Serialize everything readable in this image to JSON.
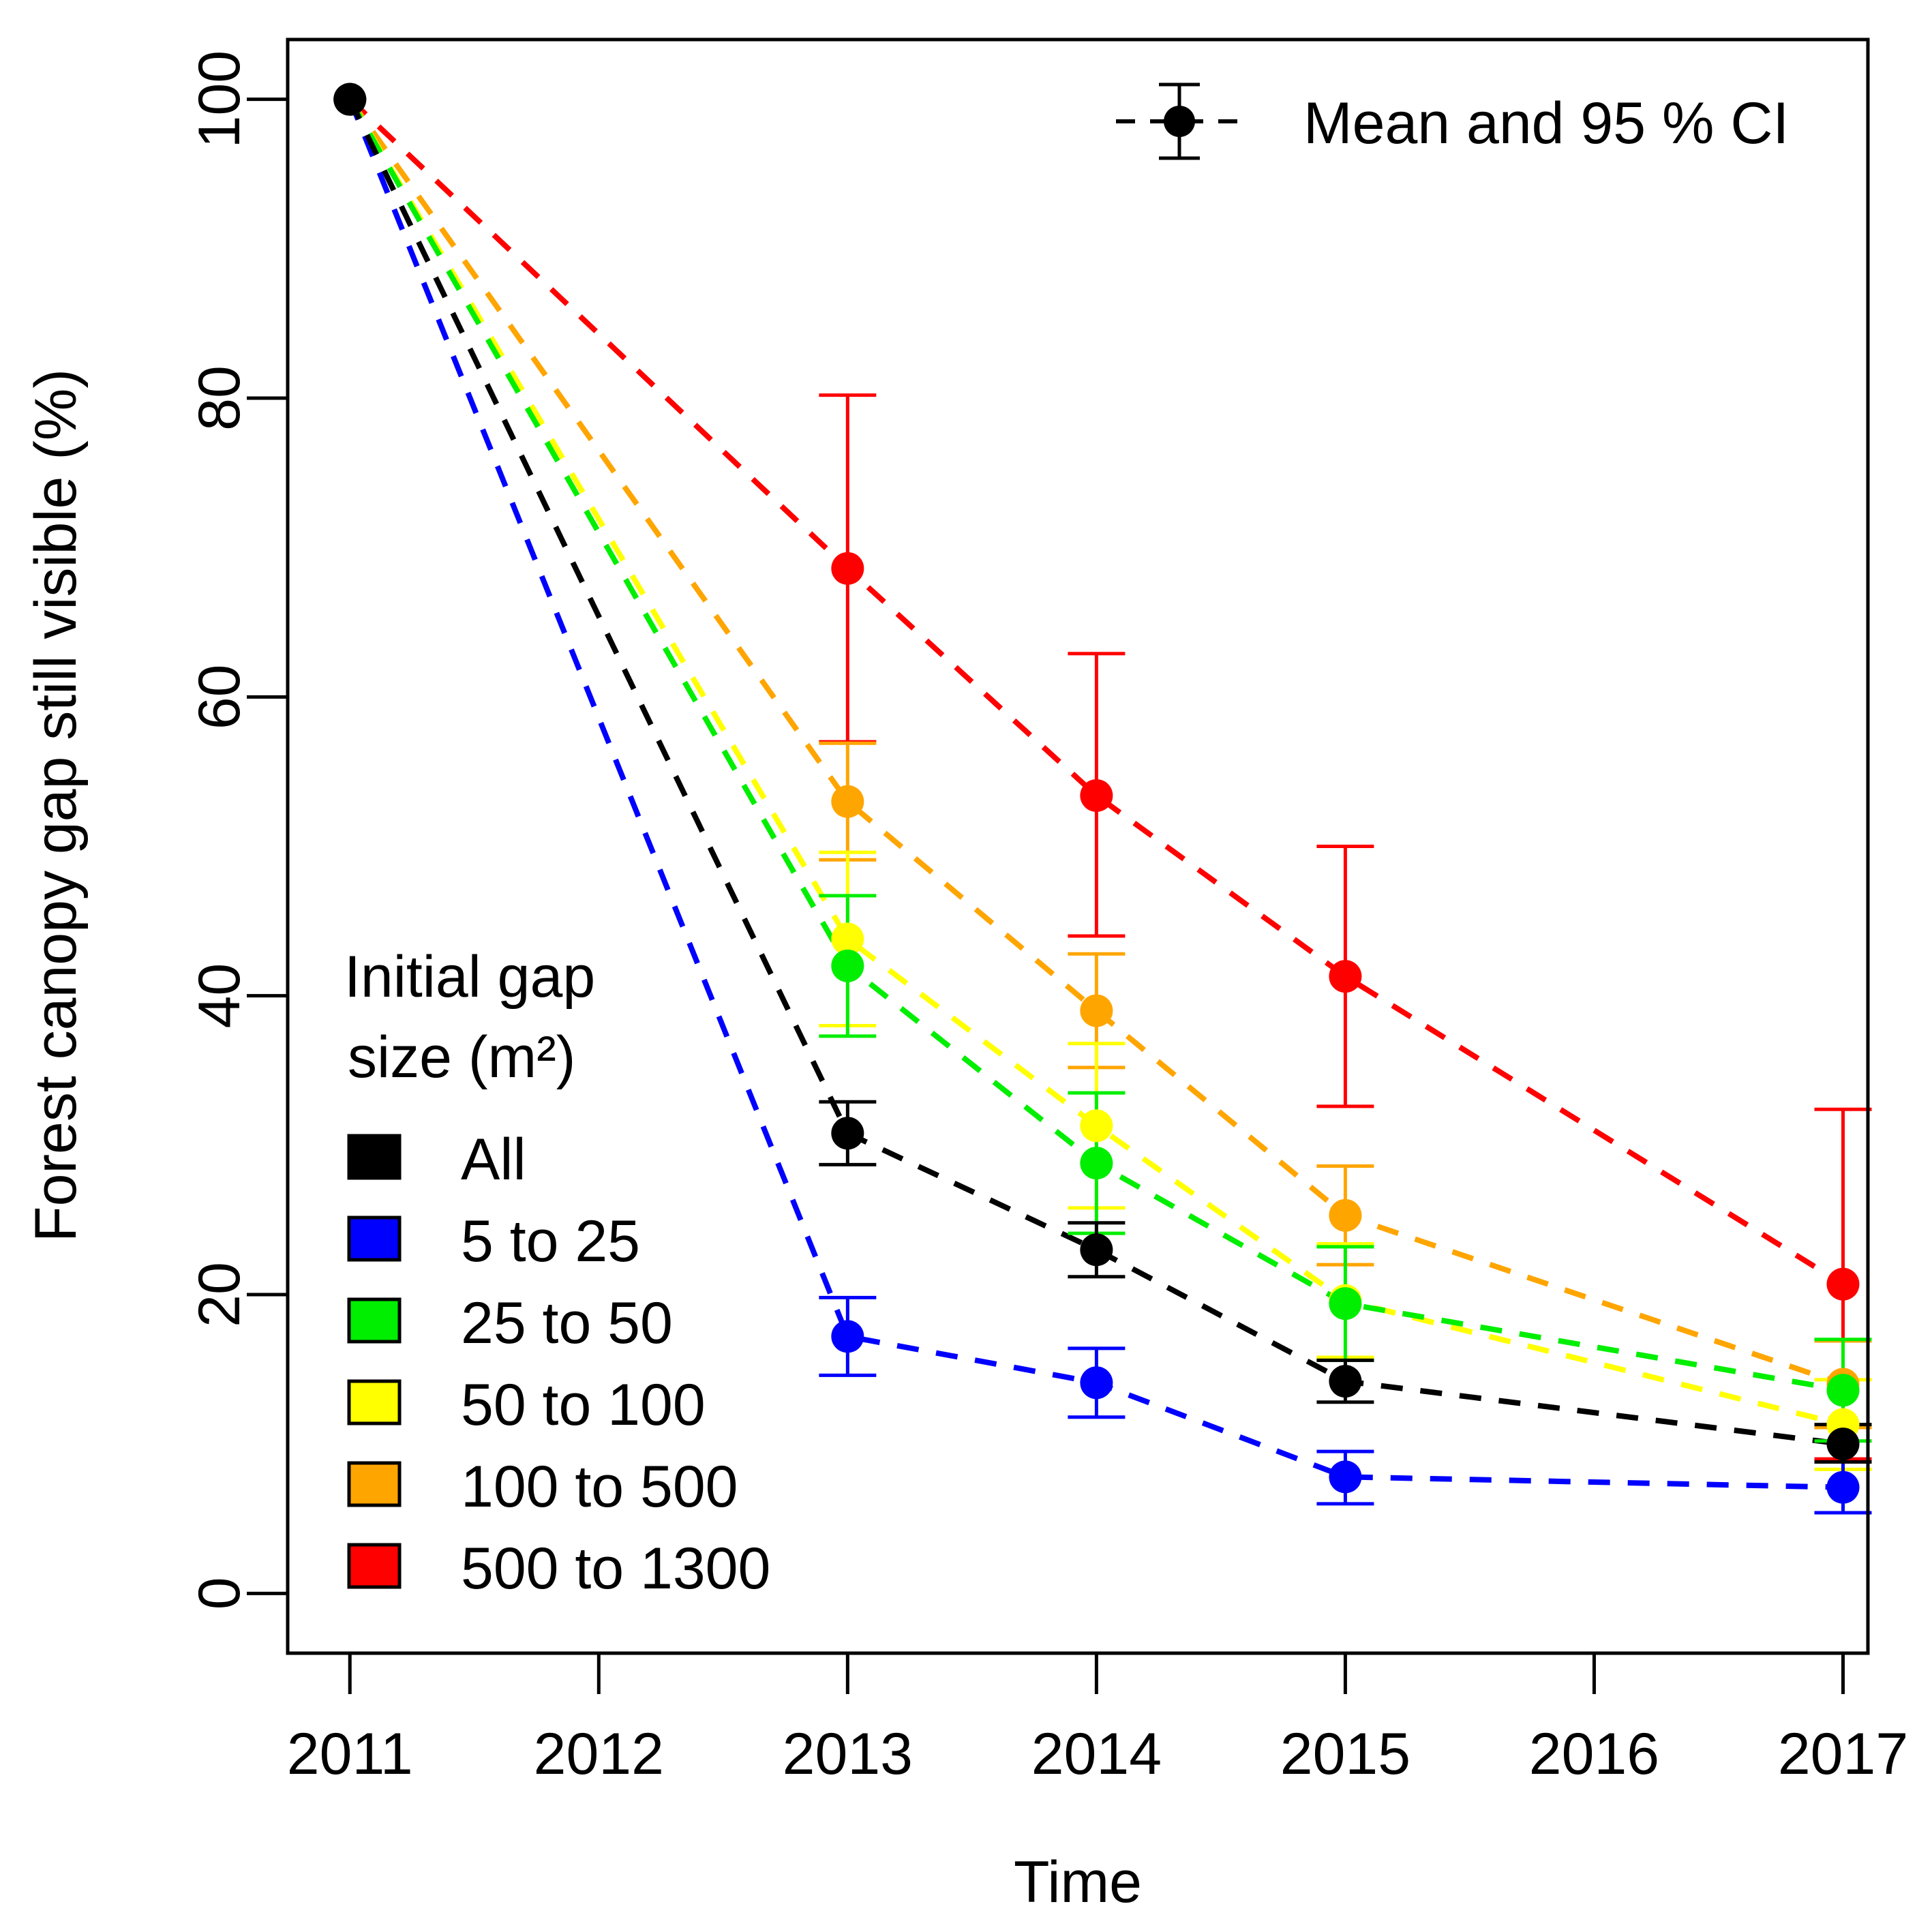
{
  "chart_data": {
    "type": "line",
    "title": "",
    "xlabel": "Time",
    "ylabel": "Forest canopy gap still visible (%)",
    "xlim": [
      2010.75,
      2017.1
    ],
    "ylim": [
      -4,
      104
    ],
    "x_ticks": [
      2011,
      2012,
      2013,
      2014,
      2015,
      2016,
      2017
    ],
    "x_tick_labels": [
      "2011",
      "2012",
      "2013",
      "2014",
      "2015",
      "2016",
      "2017"
    ],
    "y_ticks": [
      0,
      20,
      40,
      60,
      80,
      100
    ],
    "y_tick_labels": [
      "0",
      "20",
      "40",
      "60",
      "80",
      "100"
    ],
    "x": [
      2011,
      2013,
      2014,
      2015,
      2017
    ],
    "series": [
      {
        "name": "All",
        "color": "#000000",
        "values": [
          100,
          30.8,
          23.0,
          14.2,
          10.0
        ],
        "ci_low": [
          100,
          28.7,
          21.2,
          12.8,
          8.8
        ],
        "ci_high": [
          100,
          32.9,
          24.8,
          15.6,
          11.3
        ]
      },
      {
        "name": "5 to 25",
        "color": "#0000FF",
        "values": [
          100,
          17.2,
          14.1,
          7.8,
          7.1
        ],
        "ci_low": [
          100,
          14.6,
          11.8,
          6.0,
          5.4
        ],
        "ci_high": [
          100,
          19.8,
          16.4,
          9.5,
          8.8
        ]
      },
      {
        "name": "25 to 50",
        "color": "#00EE00",
        "values": [
          100,
          42.0,
          28.8,
          19.4,
          13.6
        ],
        "ci_low": [
          100,
          37.3,
          24.1,
          15.6,
          10.2
        ],
        "ci_high": [
          100,
          46.7,
          33.5,
          23.2,
          17.0
        ]
      },
      {
        "name": "50 to 100",
        "color": "#FFFF00",
        "values": [
          100,
          43.8,
          31.3,
          19.6,
          11.3
        ],
        "ci_low": [
          100,
          38.0,
          25.8,
          15.8,
          8.3
        ],
        "ci_high": [
          100,
          49.6,
          36.8,
          23.4,
          14.3
        ]
      },
      {
        "name": "100 to 500",
        "color": "#FFA500",
        "values": [
          100,
          53.0,
          39.0,
          25.3,
          14.0
        ],
        "ci_low": [
          100,
          49.1,
          35.2,
          22.0,
          11.1
        ],
        "ci_high": [
          100,
          56.9,
          42.8,
          28.6,
          16.9
        ]
      },
      {
        "name": "500 to 1300",
        "color": "#FF0000",
        "values": [
          100,
          68.6,
          53.4,
          41.3,
          20.7
        ],
        "ci_low": [
          100,
          57.0,
          44.0,
          32.6,
          9.0
        ],
        "ci_high": [
          100,
          80.2,
          62.9,
          50.0,
          32.4
        ]
      }
    ],
    "legend": {
      "title_line1": "Initial gap",
      "title_line2": "size (m²)",
      "placement": "bottom-left",
      "entries": [
        "All",
        "5 to 25",
        "25 to 50",
        "50 to 100",
        "100 to 500",
        "500 to 1300"
      ]
    },
    "key": {
      "label": "Mean and 95 % CI",
      "placement": "top-right"
    },
    "grid": false
  }
}
